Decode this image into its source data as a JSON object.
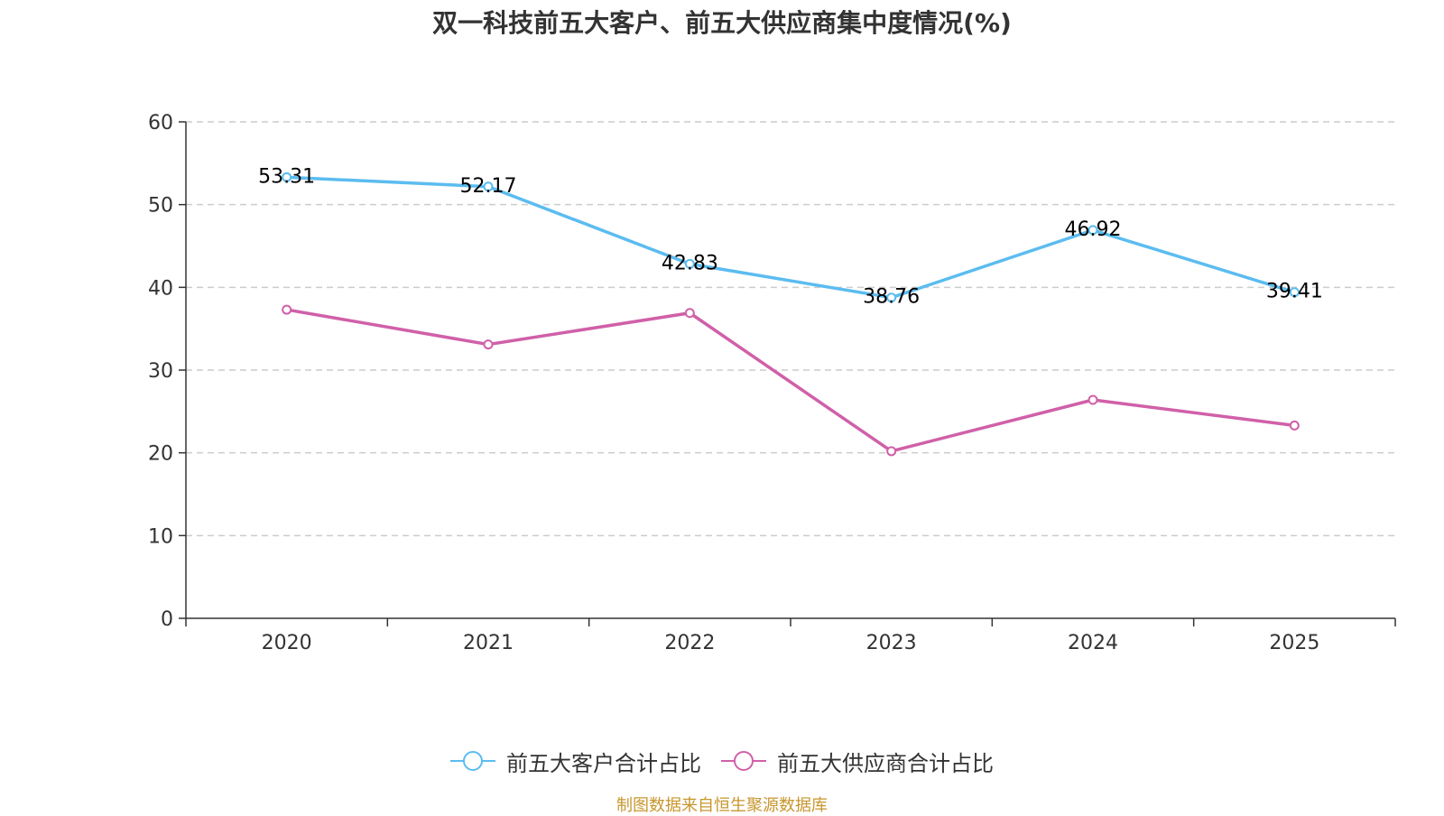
{
  "title": "双一科技前五大客户、前五大供应商集中度情况(%)",
  "source": "制图数据来自恒生聚源数据库",
  "colors": {
    "customers": "#5bbcf0",
    "suppliers": "#d060a8",
    "grid": "#cccccc",
    "axis": "#333333"
  },
  "chart_data": {
    "type": "line",
    "title": "双一科技前五大客户、前五大供应商集中度情况(%)",
    "categories": [
      "2020",
      "2021",
      "2022",
      "2023",
      "2024",
      "2025"
    ],
    "ylim": [
      0,
      60
    ],
    "yticks": [
      0,
      10,
      20,
      30,
      40,
      50,
      60
    ],
    "grid": true,
    "legend_position": "bottom-center",
    "series": [
      {
        "name": "前五大客户合计占比",
        "values": [
          53.31,
          52.17,
          42.83,
          38.76,
          46.92,
          39.41
        ],
        "labels": [
          "53.31",
          "52.17",
          "42.83",
          "38.76",
          "46.92",
          "39.41"
        ],
        "show_labels": true
      },
      {
        "name": "前五大供应商合计占比",
        "values": [
          37.3,
          33.1,
          36.9,
          20.2,
          26.4,
          23.3
        ],
        "show_labels": false
      }
    ]
  }
}
